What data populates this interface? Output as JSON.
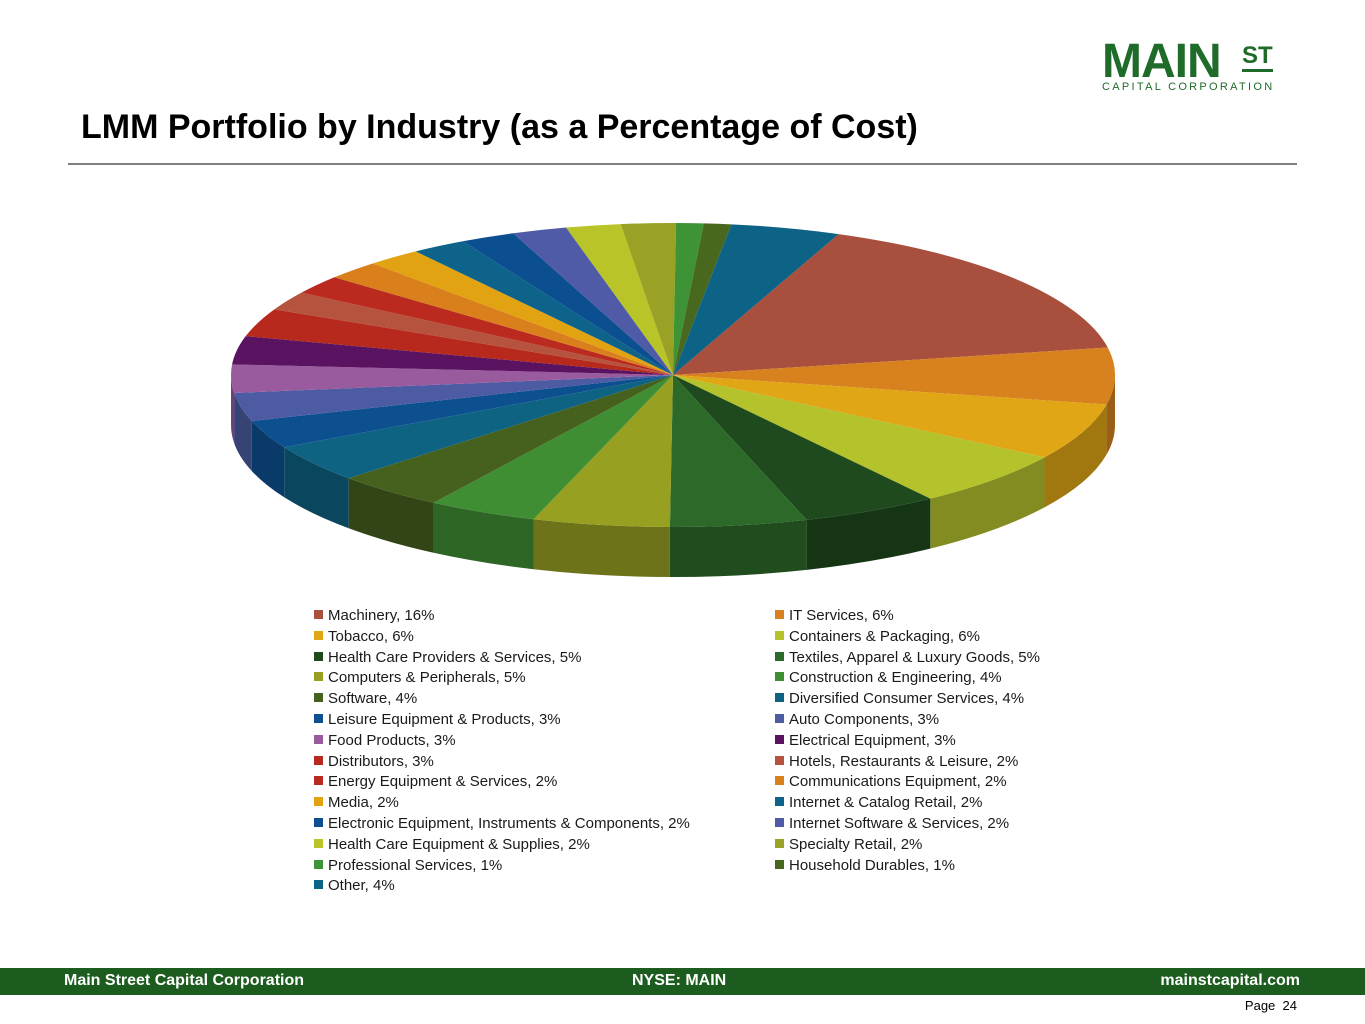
{
  "logo": {
    "main": "MAIN",
    "super": "ST",
    "sub": "CAPITAL CORPORATION"
  },
  "title": "LMM Portfolio by Industry (as a Percentage of Cost)",
  "chart_data": {
    "type": "pie",
    "title": "LMM Portfolio by Industry (as a Percentage of Cost)",
    "unit": "%",
    "slices": [
      {
        "label": "Machinery, 16%",
        "value": 16,
        "color": "#a94f3d"
      },
      {
        "label": "IT Services, 6%",
        "value": 6,
        "color": "#d7821f"
      },
      {
        "label": "Tobacco, 6%",
        "value": 6,
        "color": "#e0a615"
      },
      {
        "label": "Containers & Packaging, 6%",
        "value": 6,
        "color": "#b4c22c"
      },
      {
        "label": "Health Care Providers & Services, 5%",
        "value": 5,
        "color": "#1e4a1d"
      },
      {
        "label": "Textiles, Apparel & Luxury Goods, 5%",
        "value": 5,
        "color": "#2d6a2a"
      },
      {
        "label": "Computers & Peripherals, 5%",
        "value": 5,
        "color": "#97a021"
      },
      {
        "label": "Construction & Engineering, 4%",
        "value": 4,
        "color": "#3f8e34"
      },
      {
        "label": "Software, 4%",
        "value": 4,
        "color": "#46601e"
      },
      {
        "label": "Diversified Consumer Services, 4%",
        "value": 4,
        "color": "#0e6383"
      },
      {
        "label": "Leisure Equipment & Products, 3%",
        "value": 3,
        "color": "#0d5090"
      },
      {
        "label": "Auto Components, 3%",
        "value": 3,
        "color": "#4d5ba3"
      },
      {
        "label": "Food Products, 3%",
        "value": 3,
        "color": "#9a5a9e"
      },
      {
        "label": "Electrical Equipment, 3%",
        "value": 3,
        "color": "#5a1360"
      },
      {
        "label": "Distributors, 3%",
        "value": 3,
        "color": "#b7291c"
      },
      {
        "label": "Hotels, Restaurants & Leisure, 2%",
        "value": 2,
        "color": "#b5533e"
      },
      {
        "label": "Energy Equipment & Services, 2%",
        "value": 2,
        "color": "#bb2a1e"
      },
      {
        "label": "Communications Equipment, 2%",
        "value": 2,
        "color": "#d9801d"
      },
      {
        "label": "Media, 2%",
        "value": 2,
        "color": "#e2a312"
      },
      {
        "label": "Internet & Catalog Retail, 2%",
        "value": 2,
        "color": "#0d6389"
      },
      {
        "label": "Electronic Equipment, Instruments & Components, 2%",
        "value": 2,
        "color": "#0c4f90"
      },
      {
        "label": "Internet Software & Services, 2%",
        "value": 2,
        "color": "#4f5ba6"
      },
      {
        "label": "Health Care Equipment & Supplies, 2%",
        "value": 2,
        "color": "#b8c428"
      },
      {
        "label": "Specialty Retail, 2%",
        "value": 2,
        "color": "#9aa225"
      },
      {
        "label": "Professional Services, 1%",
        "value": 1,
        "color": "#3e9336"
      },
      {
        "label": "Household Durables, 1%",
        "value": 1,
        "color": "#48671f"
      },
      {
        "label": "Other, 4%",
        "value": 4,
        "color": "#0d6385"
      }
    ]
  },
  "footer": {
    "left": "Main Street Capital Corporation",
    "center": "NYSE: MAIN",
    "right": "mainstcapital.com"
  },
  "page": {
    "label": "Page",
    "number": "24"
  }
}
